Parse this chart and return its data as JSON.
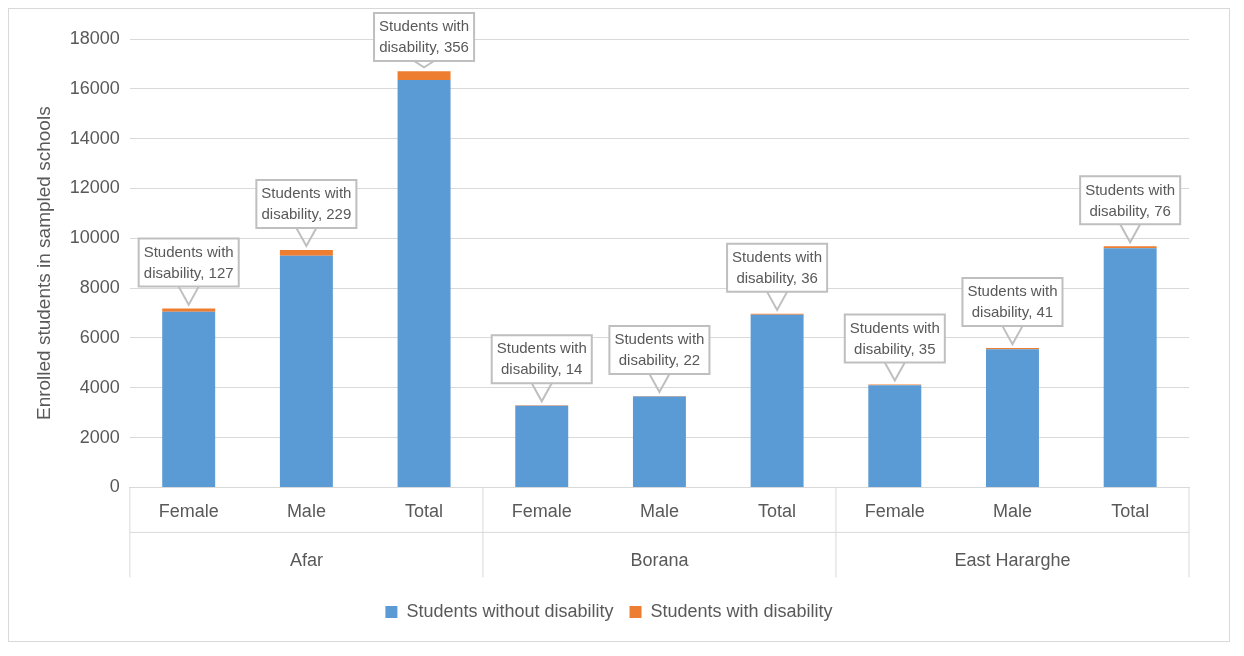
{
  "chart_data": {
    "type": "bar",
    "stacked": true,
    "ylabel": "Enrolled students in sampled schools",
    "categories": [
      "Female",
      "Male",
      "Total",
      "Female",
      "Male",
      "Total",
      "Female",
      "Male",
      "Total"
    ],
    "annotations": [
      "Afar",
      "Borana",
      "East Hararghe"
    ],
    "series": [
      {
        "name": "Students without disability",
        "color": "#5b9bd5",
        "values": [
          7050,
          9300,
          16350,
          3280,
          3650,
          6930,
          4100,
          5550,
          9600
        ]
      },
      {
        "name": "Students with disability",
        "color": "#ed7d31",
        "values": [
          127,
          229,
          356,
          14,
          22,
          36,
          35,
          41,
          76
        ],
        "value_labels": [
          "Students with disability, 127",
          "Students with disability, 229",
          "Students with disability, 356",
          "Students with disability, 14",
          "Students with disability, 22",
          "Students with disability, 36",
          "Students with disability, 35",
          "Students with disability, 41",
          "Students with disability, 76"
        ]
      }
    ],
    "ylim": [
      0,
      18000
    ],
    "yticks": [
      0,
      2000,
      4000,
      6000,
      8000,
      10000,
      12000,
      14000,
      16000,
      18000
    ],
    "grid": "y",
    "legend": "bottom"
  }
}
